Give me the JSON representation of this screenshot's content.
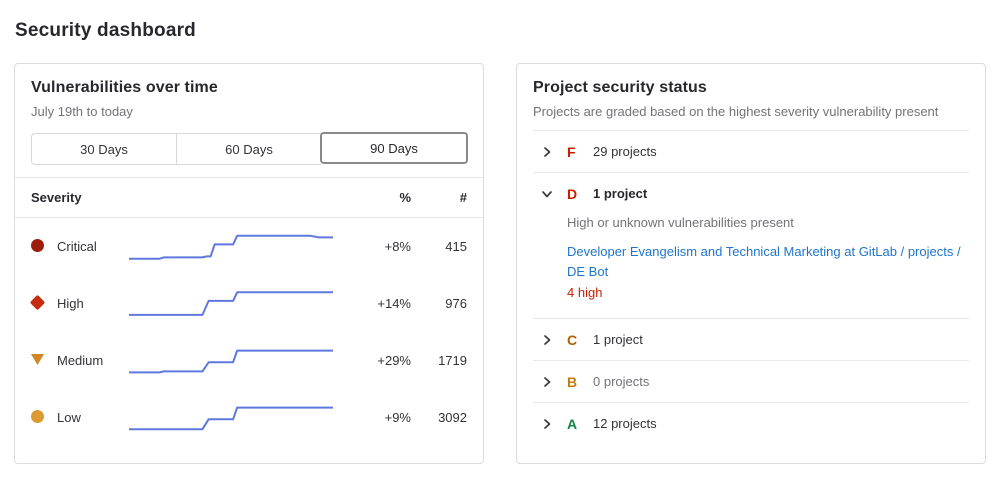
{
  "page": {
    "title": "Security dashboard"
  },
  "vuln_panel": {
    "title": "Vulnerabilities over time",
    "subtitle": "July 19th to today",
    "ranges": [
      {
        "label": "30 Days",
        "selected": false
      },
      {
        "label": "60 Days",
        "selected": false
      },
      {
        "label": "90 Days",
        "selected": true
      }
    ],
    "table_headers": {
      "severity": "Severity",
      "percent": "%",
      "count": "#"
    },
    "sparkline_color": "#5e78dd",
    "rows": [
      {
        "label": "Critical",
        "color": "#9e1d0d",
        "change": "+8%",
        "count": "415",
        "sparkline": [
          [
            0,
            0.05
          ],
          [
            0.15,
            0.05
          ],
          [
            0.17,
            0.1
          ],
          [
            0.36,
            0.1
          ],
          [
            0.38,
            0.14
          ],
          [
            0.4,
            0.14
          ],
          [
            0.42,
            0.6
          ],
          [
            0.51,
            0.6
          ],
          [
            0.53,
            0.93
          ],
          [
            0.89,
            0.93
          ],
          [
            0.93,
            0.87
          ],
          [
            1,
            0.87
          ]
        ]
      },
      {
        "label": "High",
        "color": "#c42d12",
        "change": "+14%",
        "count": "976",
        "sparkline": [
          [
            0,
            0.08
          ],
          [
            0.36,
            0.08
          ],
          [
            0.39,
            0.62
          ],
          [
            0.51,
            0.62
          ],
          [
            0.53,
            0.95
          ],
          [
            1,
            0.95
          ]
        ]
      },
      {
        "label": "Medium",
        "color": "#d18525",
        "change": "+29%",
        "count": "1719",
        "sparkline": [
          [
            0,
            0.06
          ],
          [
            0.15,
            0.06
          ],
          [
            0.17,
            0.1
          ],
          [
            0.36,
            0.1
          ],
          [
            0.39,
            0.45
          ],
          [
            0.51,
            0.45
          ],
          [
            0.53,
            0.9
          ],
          [
            1,
            0.9
          ]
        ]
      },
      {
        "label": "Low",
        "color": "#dc9a33",
        "change": "+9%",
        "count": "3092",
        "sparkline": [
          [
            0,
            0.07
          ],
          [
            0.36,
            0.07
          ],
          [
            0.39,
            0.45
          ],
          [
            0.51,
            0.45
          ],
          [
            0.53,
            0.9
          ],
          [
            1,
            0.9
          ]
        ]
      }
    ]
  },
  "status_panel": {
    "title": "Project security status",
    "subtitle": "Projects are graded based on the highest severity vulnerability present",
    "grades": [
      {
        "letter": "F",
        "color": "#c91c00",
        "count_text": "29 projects",
        "expanded": false
      },
      {
        "letter": "D",
        "color": "#c91c00",
        "count_text": "1 project",
        "expanded": true,
        "description": "High or unknown vulnerabilities present",
        "project_link": "Developer Evangelism and Technical Marketing at GitLab / projects / DE Bot",
        "finding": "4 high",
        "finding_color": "#c91c00"
      },
      {
        "letter": "C",
        "color": "#ab6100",
        "count_text": "1 project",
        "expanded": false
      },
      {
        "letter": "B",
        "color": "#c17d10",
        "count_text": "0 projects",
        "expanded": false,
        "muted": true
      },
      {
        "letter": "A",
        "color": "#108548",
        "count_text": "12 projects",
        "expanded": false
      }
    ]
  }
}
